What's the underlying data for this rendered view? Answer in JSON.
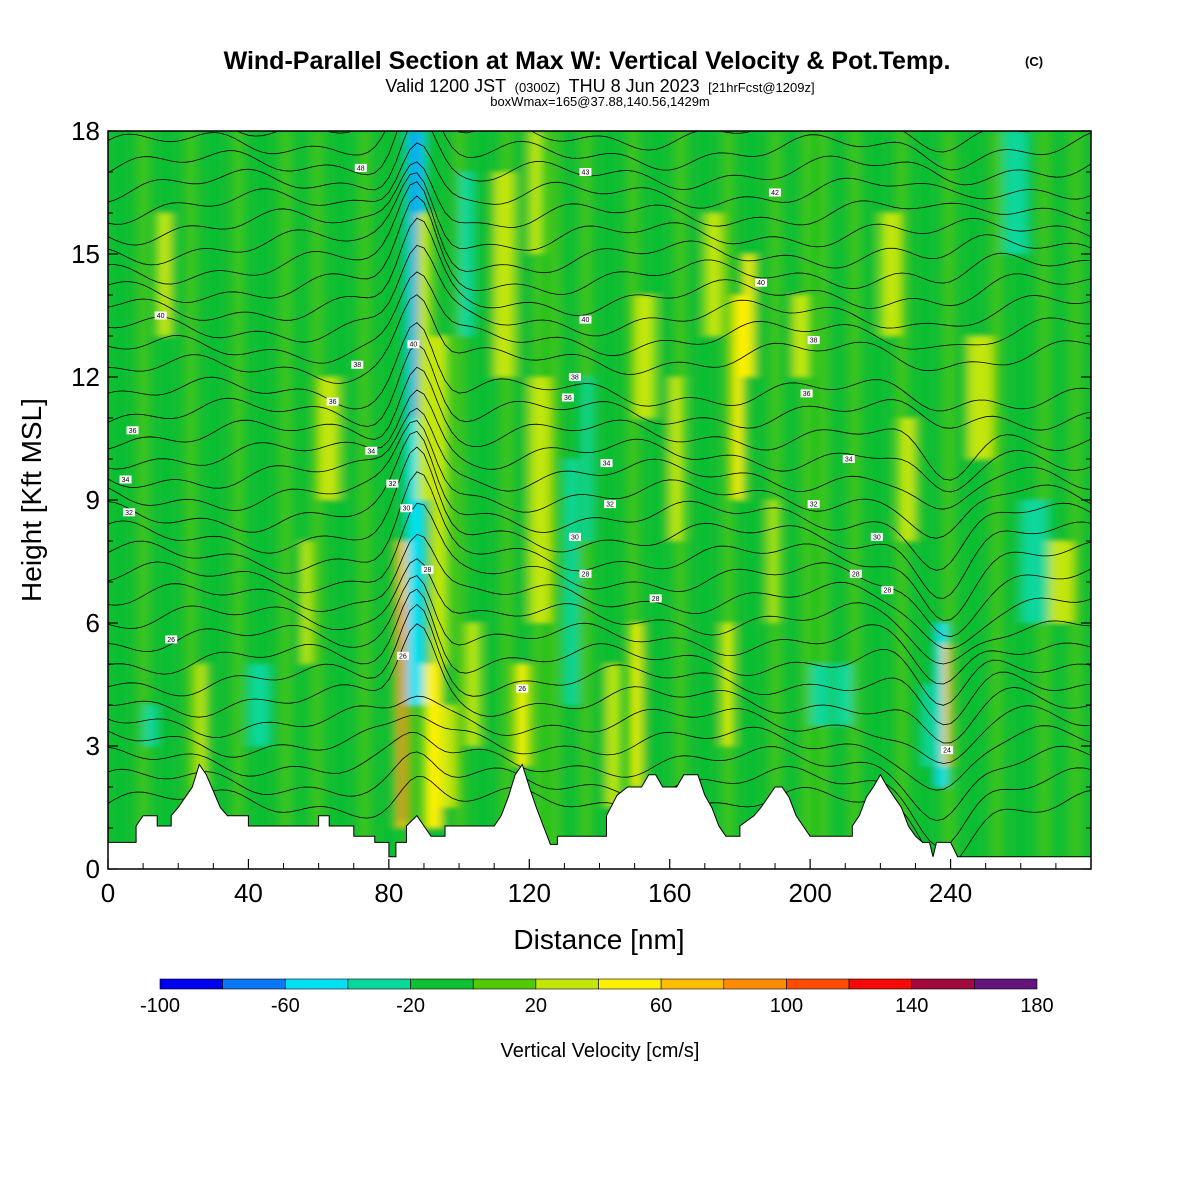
{
  "title": {
    "main": "Wind-Parallel Section at Max W: Vertical Velocity & Pot.Temp.",
    "copyright": "(C)",
    "valid_prefix": "Valid 1200 JST",
    "valid_z": "(0300Z)",
    "valid_date": "THU 8 Jun 2023",
    "valid_fcst": "[21hrFcst@1209z]",
    "subline": "boxWmax=165@37.88,140.56,1429m"
  },
  "chart_data": {
    "type": "heatmap",
    "description_free": true,
    "xlabel": "Distance [nm]",
    "ylabel": "Height [Kft MSL]",
    "xlim": [
      0,
      280
    ],
    "ylim": [
      0,
      18
    ],
    "xticks": [
      0,
      40,
      80,
      120,
      160,
      200,
      240
    ],
    "yticks": [
      0,
      3,
      6,
      9,
      12,
      15,
      18
    ],
    "colorbar": {
      "label": "Vertical Velocity [cm/s]",
      "bounds": [
        -100,
        -80,
        -60,
        -40,
        -20,
        0,
        20,
        40,
        60,
        80,
        100,
        120,
        140,
        160,
        180
      ],
      "tick_labels": [
        "-100",
        "-60",
        "-20",
        "20",
        "60",
        "100",
        "140",
        "180"
      ],
      "colors": [
        "#0000f0",
        "#0a78f5",
        "#00e1f5",
        "#0ad79b",
        "#10be32",
        "#55c80a",
        "#c3e60a",
        "#fff000",
        "#ffbe00",
        "#ff8c00",
        "#ff4b00",
        "#f50a0a",
        "#a00a3c",
        "#64147d"
      ]
    },
    "theta_labels": [
      {
        "x": 72,
        "y": 17.1,
        "text": "48"
      },
      {
        "x": 136,
        "y": 17.0,
        "text": "43"
      },
      {
        "x": 190,
        "y": 16.5,
        "text": "42"
      },
      {
        "x": 186,
        "y": 14.3,
        "text": "40"
      },
      {
        "x": 15,
        "y": 13.5,
        "text": "40"
      },
      {
        "x": 87,
        "y": 12.8,
        "text": "40"
      },
      {
        "x": 136,
        "y": 13.4,
        "text": "40"
      },
      {
        "x": 201,
        "y": 12.9,
        "text": "38"
      },
      {
        "x": 71,
        "y": 12.3,
        "text": "38"
      },
      {
        "x": 133,
        "y": 12.0,
        "text": "38"
      },
      {
        "x": 64,
        "y": 11.4,
        "text": "36"
      },
      {
        "x": 131,
        "y": 11.5,
        "text": "36"
      },
      {
        "x": 199,
        "y": 11.6,
        "text": "36"
      },
      {
        "x": 7,
        "y": 10.7,
        "text": "36"
      },
      {
        "x": 75,
        "y": 10.2,
        "text": "34"
      },
      {
        "x": 142,
        "y": 9.9,
        "text": "34"
      },
      {
        "x": 211,
        "y": 10.0,
        "text": "34"
      },
      {
        "x": 5,
        "y": 9.5,
        "text": "34"
      },
      {
        "x": 81,
        "y": 9.4,
        "text": "32"
      },
      {
        "x": 143,
        "y": 8.9,
        "text": "32"
      },
      {
        "x": 201,
        "y": 8.9,
        "text": "32"
      },
      {
        "x": 6,
        "y": 8.7,
        "text": "32"
      },
      {
        "x": 85,
        "y": 8.8,
        "text": "30"
      },
      {
        "x": 133,
        "y": 8.1,
        "text": "30"
      },
      {
        "x": 219,
        "y": 8.1,
        "text": "30"
      },
      {
        "x": 91,
        "y": 7.3,
        "text": "28"
      },
      {
        "x": 136,
        "y": 7.2,
        "text": "28"
      },
      {
        "x": 156,
        "y": 6.6,
        "text": "28"
      },
      {
        "x": 213,
        "y": 7.2,
        "text": "28"
      },
      {
        "x": 222,
        "y": 6.8,
        "text": "28"
      },
      {
        "x": 18,
        "y": 5.6,
        "text": "26"
      },
      {
        "x": 84,
        "y": 5.2,
        "text": "26"
      },
      {
        "x": 118,
        "y": 4.4,
        "text": "26"
      },
      {
        "x": 239,
        "y": 2.9,
        "text": "24"
      }
    ]
  }
}
